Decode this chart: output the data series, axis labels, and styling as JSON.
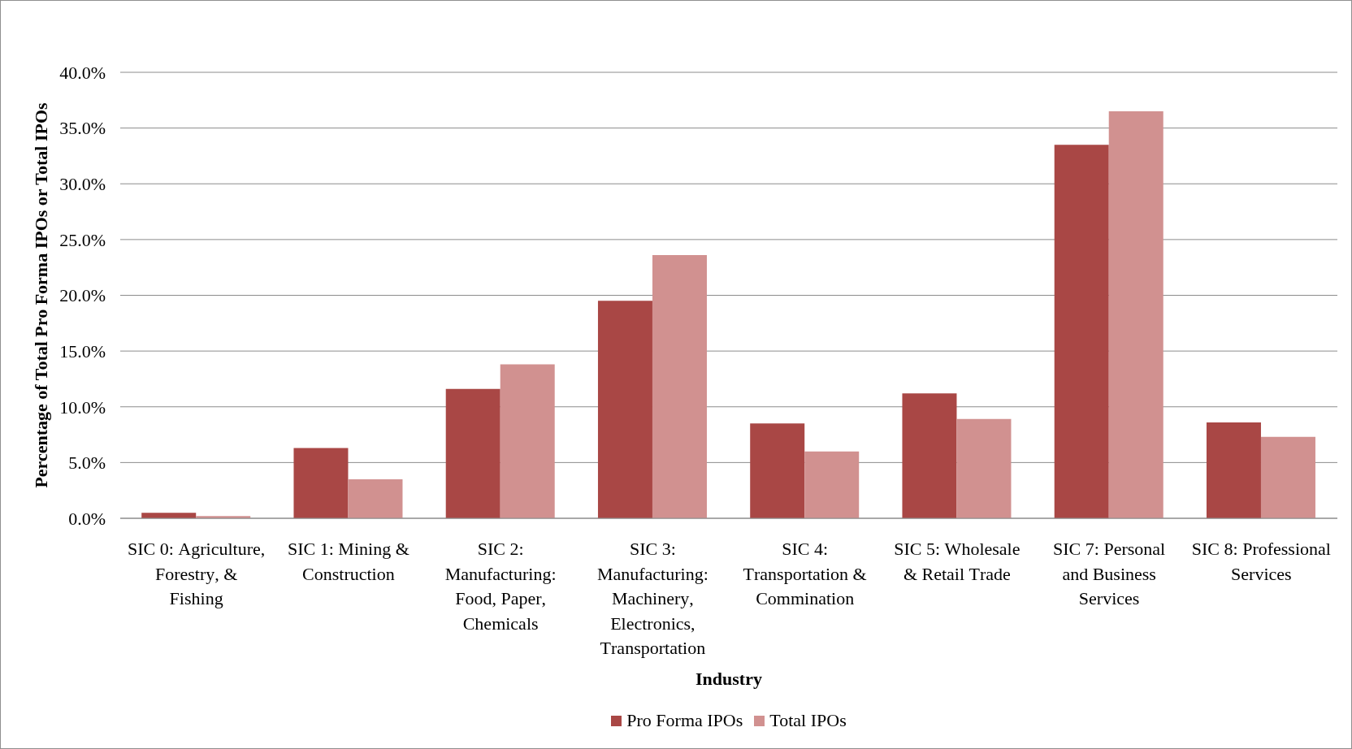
{
  "chart_data": {
    "type": "bar",
    "xlabel": "Industry",
    "ylabel": "Percentage of Total Pro Forma IPOs or Total IPOs",
    "categories": [
      "SIC 0: Agriculture, Forestry, & Fishing",
      "SIC 1: Mining & Construction",
      "SIC 2: Manufacturing: Food, Paper, Chemicals",
      "SIC 3: Manufacturing: Machinery, Electronics, Transportation",
      "SIC 4: Transportation & Commination",
      "SIC 5: Wholesale & Retail Trade",
      "SIC 7: Personal and Business Services",
      "SIC 8: Professional Services"
    ],
    "series": [
      {
        "name": "Pro Forma IPOs",
        "color": "#a94745",
        "values": [
          0.5,
          6.3,
          11.6,
          19.5,
          8.5,
          11.2,
          33.5,
          8.6
        ]
      },
      {
        "name": "Total IPOs",
        "color": "#d19190",
        "values": [
          0.2,
          3.5,
          13.8,
          23.6,
          6.0,
          8.9,
          36.5,
          7.3
        ]
      }
    ],
    "ylim": [
      0,
      40
    ],
    "yticks": [
      {
        "value": 0,
        "label": "0.0%"
      },
      {
        "value": 5,
        "label": "5.0%"
      },
      {
        "value": 10,
        "label": "10.0%"
      },
      {
        "value": 15,
        "label": "15.0%"
      },
      {
        "value": 20,
        "label": "20.0%"
      },
      {
        "value": 25,
        "label": "25.0%"
      },
      {
        "value": 30,
        "label": "30.0%"
      },
      {
        "value": 35,
        "label": "35.0%"
      },
      {
        "value": 40,
        "label": "40.0%"
      }
    ],
    "grid": "y",
    "legend": "bottom"
  }
}
